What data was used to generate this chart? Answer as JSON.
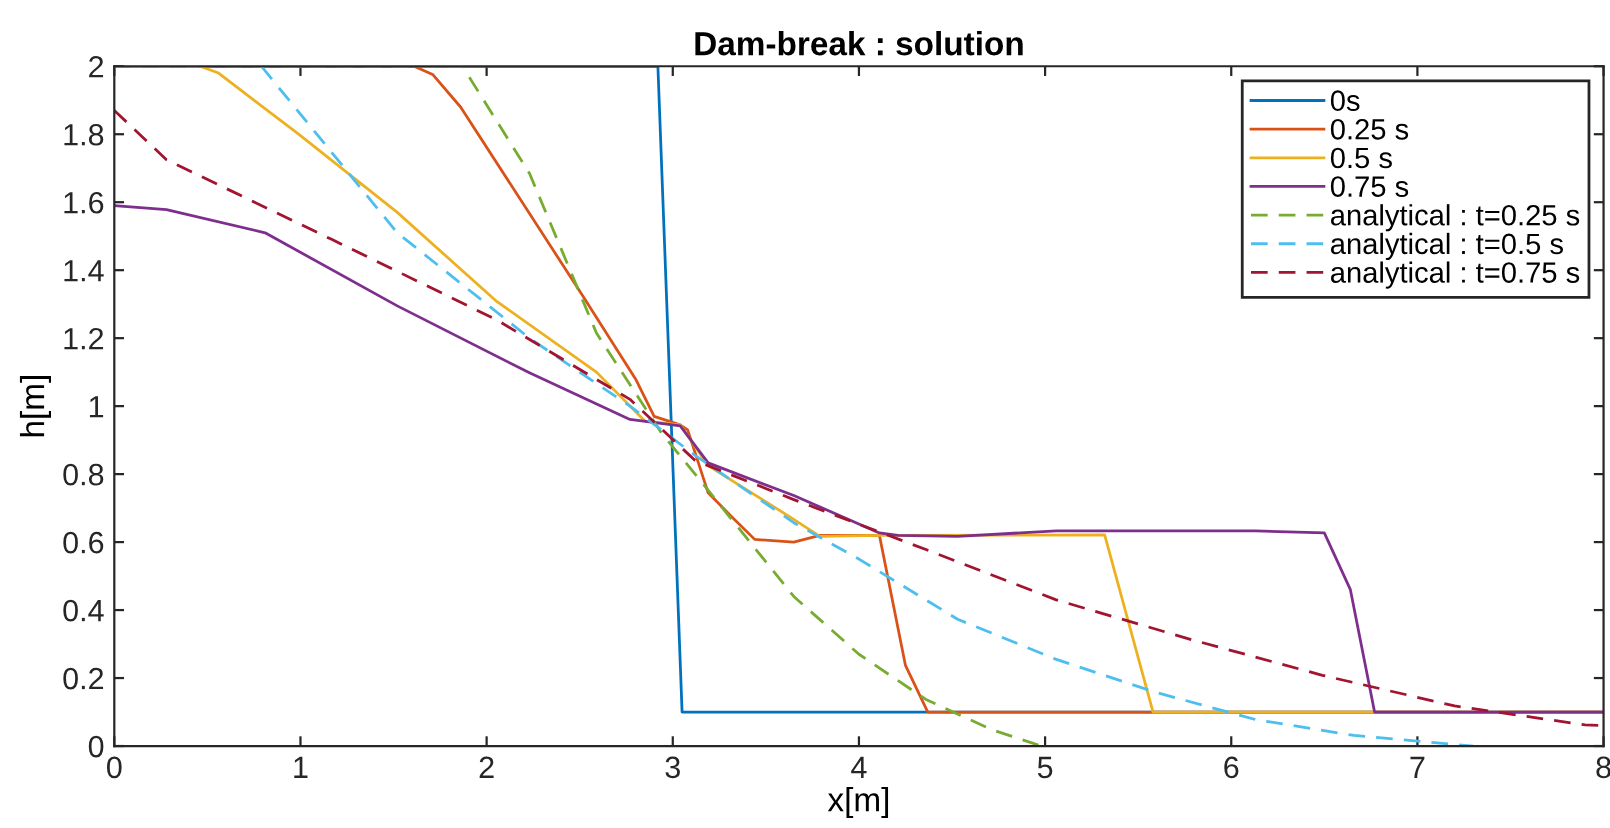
{
  "chart_data": {
    "type": "line",
    "title": "Dam-break : solution",
    "xlabel": "x[m]",
    "ylabel": "h[m]",
    "xlim": [
      0,
      8
    ],
    "ylim": [
      0,
      2
    ],
    "xticks": [
      0,
      1,
      2,
      3,
      4,
      5,
      6,
      7,
      8
    ],
    "yticks": [
      0,
      0.2,
      0.4,
      0.6,
      0.8,
      1,
      1.2,
      1.4,
      1.6,
      1.8,
      2
    ],
    "grid": false,
    "legend": "top right",
    "series": [
      {
        "name": "0s",
        "color": "#0072bd",
        "line_style": "solid",
        "x": [
          0,
          2.92,
          3.05,
          8
        ],
        "values": [
          2,
          2,
          0.1,
          0.1
        ]
      },
      {
        "name": "0.25 s",
        "color": "#d95319",
        "line_style": "solid",
        "x": [
          0,
          1.61,
          1.71,
          1.86,
          2.51,
          2.8,
          2.9,
          3.04,
          3.08,
          3.19,
          3.33,
          3.44,
          3.65,
          3.79,
          4.11,
          4.25,
          4.37,
          8
        ],
        "values": [
          2,
          2,
          1.976,
          1.88,
          1.33,
          1.08,
          0.97,
          0.945,
          0.93,
          0.745,
          0.667,
          0.608,
          0.6,
          0.62,
          0.62,
          0.237,
          0.1,
          0.1
        ]
      },
      {
        "name": "0.5 s",
        "color": "#edb120",
        "line_style": "solid",
        "x": [
          0,
          0.46,
          0.56,
          0.99,
          1.52,
          2.05,
          2.59,
          2.85,
          3.04,
          3.19,
          3.65,
          3.79,
          4.11,
          5.32,
          5.58,
          8
        ],
        "values": [
          2,
          2,
          1.98,
          1.8,
          1.57,
          1.31,
          1.1,
          0.956,
          0.945,
          0.825,
          0.667,
          0.617,
          0.62,
          0.621,
          0.1,
          0.1
        ]
      },
      {
        "name": "0.75 s",
        "color": "#7e2f8e",
        "line_style": "solid",
        "x": [
          0,
          0.28,
          0.81,
          1.52,
          2.23,
          2.77,
          3.04,
          3.19,
          3.65,
          4.11,
          4.21,
          4.53,
          5.06,
          6.13,
          6.5,
          6.64,
          6.77,
          8
        ],
        "values": [
          1.59,
          1.578,
          1.51,
          1.295,
          1.098,
          0.961,
          0.942,
          0.833,
          0.737,
          0.627,
          0.62,
          0.617,
          0.633,
          0.633,
          0.627,
          0.46,
          0.1,
          0.1
        ]
      },
      {
        "name": "analytical : t=0.25 s",
        "color": "#77ac30",
        "line_style": "dashed",
        "x": [
          0,
          1.87,
          2.23,
          2.59,
          2.94,
          3.12,
          3.65,
          4.0,
          4.36,
          4.71,
          4.98
        ],
        "values": [
          2,
          2,
          1.685,
          1.215,
          0.92,
          0.8,
          0.44,
          0.27,
          0.137,
          0.049,
          0
        ]
      },
      {
        "name": "analytical : t=0.5 s",
        "color": "#4dbeee",
        "line_style": "dashed",
        "x": [
          0.79,
          1.52,
          2.23,
          2.77,
          3.12,
          3.65,
          4.0,
          4.53,
          5.06,
          5.6,
          6.13,
          6.66,
          7.3
        ],
        "values": [
          2,
          1.51,
          1.2,
          1.0,
          0.855,
          0.657,
          0.55,
          0.373,
          0.255,
          0.157,
          0.078,
          0.031,
          0
        ]
      },
      {
        "name": "analytical : t=0.75 s",
        "color": "#a2142f",
        "line_style": "dashed",
        "x": [
          0,
          0.28,
          1.17,
          2.05,
          2.77,
          3.12,
          3.65,
          4.36,
          5.06,
          5.78,
          6.49,
          7.2,
          7.9,
          8
        ],
        "values": [
          1.87,
          1.725,
          1.49,
          1.255,
          1.02,
          0.84,
          0.725,
          0.578,
          0.43,
          0.314,
          0.208,
          0.118,
          0.062,
          0.06
        ]
      }
    ]
  }
}
